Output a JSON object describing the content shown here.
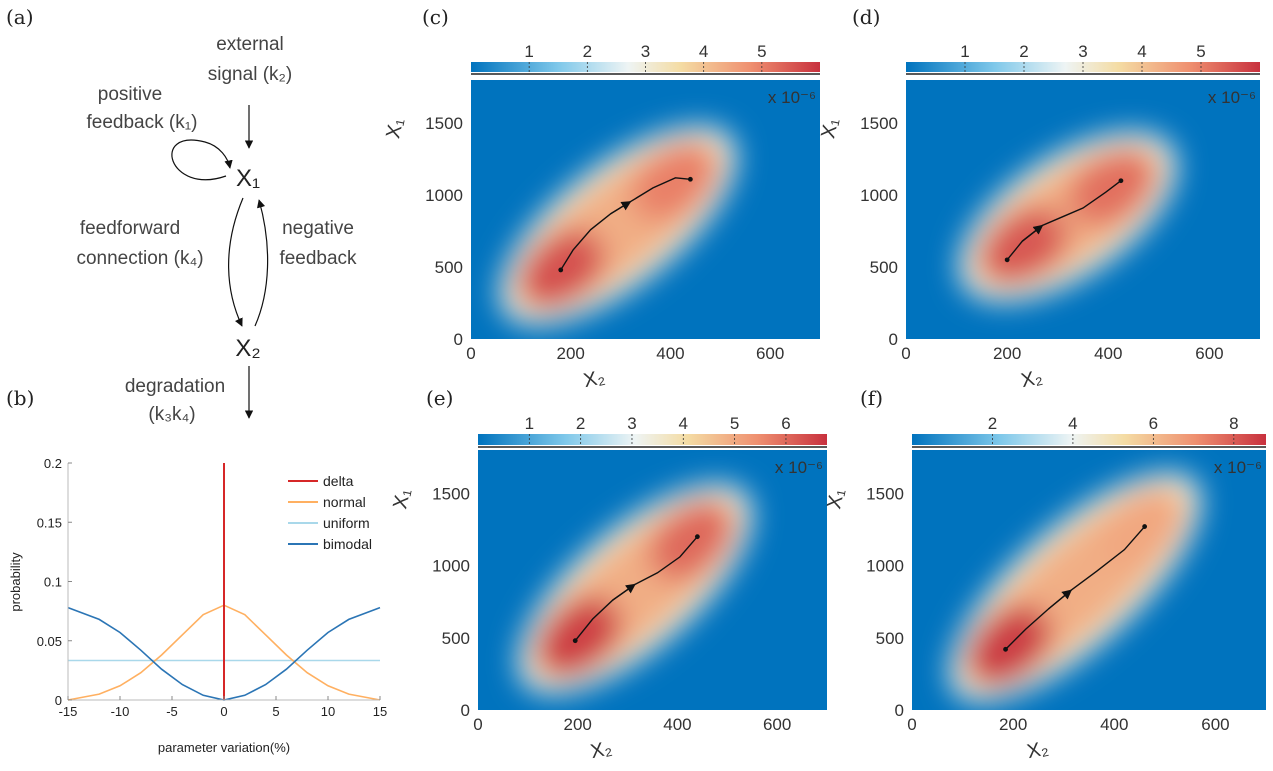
{
  "panel_labels": {
    "a": "(a)",
    "b": "(b)",
    "c": "(c)",
    "d": "(d)",
    "e": "(e)",
    "f": "(f)"
  },
  "diagram": {
    "external_signal": [
      "external",
      "signal (k₂)"
    ],
    "positive_feedback": [
      "positive",
      "feedback (k₁)"
    ],
    "feedforward": [
      "feedforward",
      "connection (k₄)"
    ],
    "negative_feedback": [
      "negative",
      "feedback"
    ],
    "degradation": [
      "degradation",
      "(k₃k₄)"
    ],
    "node_x1": "X₁",
    "node_x2": "X₂"
  },
  "colors": {
    "delta": "#d62728",
    "normal": "#ffb061",
    "uniform": "#a9d8ea",
    "bimodal": "#2b75b5",
    "heatmap_low": "#0073be",
    "heatmap_high": "#c8313e"
  },
  "chart_data": [
    {
      "id": "b",
      "type": "line",
      "xlabel": "parameter variation(%)",
      "ylabel": "probability",
      "xlim": [
        -15,
        15
      ],
      "ylim": [
        0,
        0.2
      ],
      "xticks": [
        "-15",
        "-10",
        "-5",
        "0",
        "5",
        "10",
        "15"
      ],
      "yticks": [
        "0",
        "0.05",
        "0.1",
        "0.15",
        "0.2"
      ],
      "legend": "top-right",
      "series": [
        {
          "name": "delta",
          "type": "vline",
          "x": 0,
          "y": [
            0,
            0.2
          ]
        },
        {
          "name": "normal",
          "x": [
            -15,
            -12,
            -10,
            -8,
            -6,
            -4,
            -2,
            0,
            2,
            4,
            6,
            8,
            10,
            12,
            15
          ],
          "y": [
            0.0,
            0.005,
            0.012,
            0.023,
            0.038,
            0.055,
            0.072,
            0.08,
            0.072,
            0.055,
            0.038,
            0.023,
            0.012,
            0.005,
            0.0
          ]
        },
        {
          "name": "uniform",
          "x": [
            -15,
            15
          ],
          "y": [
            0.0333,
            0.0333
          ]
        },
        {
          "name": "bimodal",
          "x": [
            -15,
            -12,
            -10,
            -8,
            -6,
            -4,
            -2,
            0,
            2,
            4,
            6,
            8,
            10,
            12,
            15
          ],
          "y": [
            0.078,
            0.068,
            0.057,
            0.042,
            0.026,
            0.013,
            0.004,
            0.0,
            0.004,
            0.013,
            0.026,
            0.042,
            0.057,
            0.068,
            0.078
          ]
        }
      ]
    },
    {
      "id": "c",
      "type": "heatmap",
      "xlabel": "X₂",
      "ylabel": "X₁",
      "xlim": [
        0,
        700
      ],
      "ylim": [
        0,
        1800
      ],
      "xticks": [
        "0",
        "200",
        "400",
        "600"
      ],
      "yticks": [
        "0",
        "500",
        "1000",
        "1500"
      ],
      "colorbar_ticks": [
        1,
        2,
        3,
        4,
        5
      ],
      "colorbar_range": [
        0,
        6
      ],
      "colorbar_multiplier": "x 10⁻⁶",
      "trajectory": {
        "x": [
          180,
          205,
          240,
          280,
          320,
          365,
          410,
          440
        ],
        "y": [
          480,
          620,
          760,
          870,
          955,
          1050,
          1120,
          1110
        ],
        "arrow_at": 4
      },
      "density": {
        "peaks": [
          {
            "x": 180,
            "y": 480,
            "v": 5.6
          },
          {
            "x": 410,
            "y": 1100,
            "v": 5.0
          }
        ]
      }
    },
    {
      "id": "d",
      "type": "heatmap",
      "xlabel": "X₂",
      "ylabel": "X₁",
      "xlim": [
        0,
        700
      ],
      "ylim": [
        0,
        1800
      ],
      "xticks": [
        "0",
        "200",
        "400",
        "600"
      ],
      "yticks": [
        "0",
        "500",
        "1000",
        "1500"
      ],
      "colorbar_ticks": [
        1,
        2,
        3,
        4,
        5
      ],
      "colorbar_range": [
        0,
        6
      ],
      "colorbar_multiplier": "x 10⁻⁶",
      "trajectory": {
        "x": [
          200,
          230,
          270,
          310,
          350,
          395,
          425
        ],
        "y": [
          550,
          680,
          790,
          850,
          910,
          1020,
          1100
        ],
        "arrow_at": 2
      },
      "density": {
        "peaks": [
          {
            "x": 230,
            "y": 640,
            "v": 5.5
          },
          {
            "x": 410,
            "y": 1060,
            "v": 5.2
          }
        ]
      }
    },
    {
      "id": "e",
      "type": "heatmap",
      "xlabel": "X₂",
      "ylabel": "X₁",
      "xlim": [
        0,
        700
      ],
      "ylim": [
        0,
        1800
      ],
      "xticks": [
        "0",
        "200",
        "400",
        "600"
      ],
      "yticks": [
        "0",
        "500",
        "1000",
        "1500"
      ],
      "colorbar_ticks": [
        1,
        2,
        3,
        4,
        5,
        6
      ],
      "colorbar_range": [
        0,
        6.8
      ],
      "colorbar_multiplier": "x 10⁻⁶",
      "trajectory": {
        "x": [
          195,
          230,
          270,
          315,
          360,
          405,
          440
        ],
        "y": [
          480,
          630,
          760,
          870,
          950,
          1060,
          1200
        ],
        "arrow_at": 3
      },
      "density": {
        "peaks": [
          {
            "x": 200,
            "y": 500,
            "v": 6.6
          },
          {
            "x": 430,
            "y": 1180,
            "v": 6.0
          }
        ]
      }
    },
    {
      "id": "f",
      "type": "heatmap",
      "xlabel": "X₂",
      "ylabel": "X₁",
      "xlim": [
        0,
        700
      ],
      "ylim": [
        0,
        1800
      ],
      "xticks": [
        "0",
        "200",
        "400",
        "600"
      ],
      "yticks": [
        "0",
        "500",
        "1000",
        "1500"
      ],
      "colorbar_ticks": [
        2,
        4,
        6,
        8
      ],
      "colorbar_range": [
        0,
        8.8
      ],
      "colorbar_multiplier": "x 10⁻⁶",
      "trajectory": {
        "x": [
          185,
          225,
          270,
          315,
          365,
          420,
          460
        ],
        "y": [
          420,
          560,
          700,
          830,
          960,
          1110,
          1270
        ],
        "arrow_at": 3
      },
      "density": {
        "peaks": [
          {
            "x": 190,
            "y": 440,
            "v": 8.6
          },
          {
            "x": 455,
            "y": 1260,
            "v": 6.5
          }
        ]
      }
    }
  ]
}
